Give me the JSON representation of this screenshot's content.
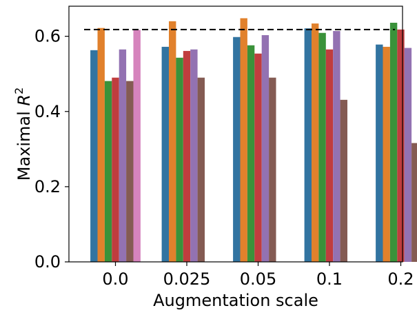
{
  "chart_data": {
    "type": "bar",
    "xlabel": "Augmentation scale",
    "ylabel_prefix": "Maximal ",
    "ylabel_var": "R",
    "ylabel_sup": "2",
    "categories": [
      "0.0",
      "0.025",
      "0.05",
      "0.1",
      "0.2"
    ],
    "ylim": [
      0.0,
      0.68
    ],
    "yticks": [
      0.0,
      0.2,
      0.4,
      0.6
    ],
    "ytick_labels": [
      "0.0",
      "0.2",
      "0.4",
      "0.6"
    ],
    "reference_line": 0.618,
    "reference_line_style": "dashed",
    "grid": false,
    "series": [
      {
        "color": "#3274a1",
        "values": [
          0.563,
          0.572,
          0.598,
          0.621,
          0.578
        ]
      },
      {
        "color": "#e1812c",
        "values": [
          0.622,
          0.64,
          0.648,
          0.634,
          0.572
        ]
      },
      {
        "color": "#3a923a",
        "values": [
          0.481,
          0.543,
          0.576,
          0.609,
          0.636
        ]
      },
      {
        "color": "#c03d3e",
        "values": [
          0.49,
          0.561,
          0.554,
          0.565,
          0.618
        ]
      },
      {
        "color": "#9372b2",
        "values": [
          0.565,
          0.565,
          0.603,
          0.614,
          0.569
        ]
      },
      {
        "color": "#845b53",
        "values": [
          0.481,
          0.49,
          0.49,
          0.431,
          0.316
        ]
      },
      {
        "color": "#d684bd",
        "values": [
          0.617,
          null,
          null,
          null,
          null
        ]
      }
    ]
  }
}
